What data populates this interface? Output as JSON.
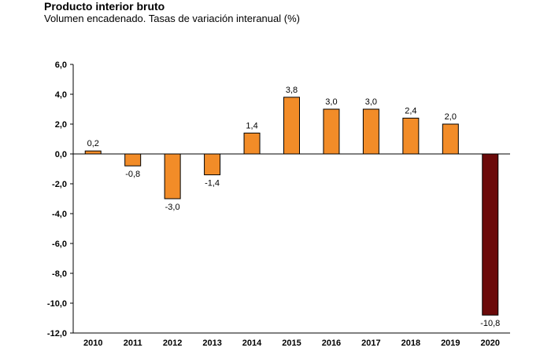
{
  "chart_data": {
    "type": "bar",
    "title": "Producto interior bruto",
    "subtitle": "Volumen encadenado. Tasas de variación interanual (%)",
    "categories": [
      "2010",
      "2011",
      "2012",
      "2013",
      "2014",
      "2015",
      "2016",
      "2017",
      "2018",
      "2019",
      "2020"
    ],
    "values": [
      0.2,
      -0.8,
      -3.0,
      -1.4,
      1.4,
      3.8,
      3.0,
      3.0,
      2.4,
      2.0,
      -10.8
    ],
    "value_labels": [
      "0,2",
      "-0,8",
      "-3,0",
      "-1,4",
      "1,4",
      "3,8",
      "3,0",
      "3,0",
      "2,4",
      "2,0",
      "-10,8"
    ],
    "ylim": [
      -12,
      6
    ],
    "yticks": [
      6,
      4,
      2,
      0,
      -2,
      -4,
      -6,
      -8,
      -10,
      -12
    ],
    "ytick_labels": [
      "6,0",
      "4,0",
      "2,0",
      "0,0",
      "-2,0",
      "-4,0",
      "-6,0",
      "-8,0",
      "-10,0",
      "-12,0"
    ],
    "grid": false,
    "colors": {
      "bar": "#F28C28",
      "highlight_bar": "#6B0A0A",
      "bar_outline": "#000000",
      "axis": "#000000"
    },
    "highlight_index": 10
  }
}
